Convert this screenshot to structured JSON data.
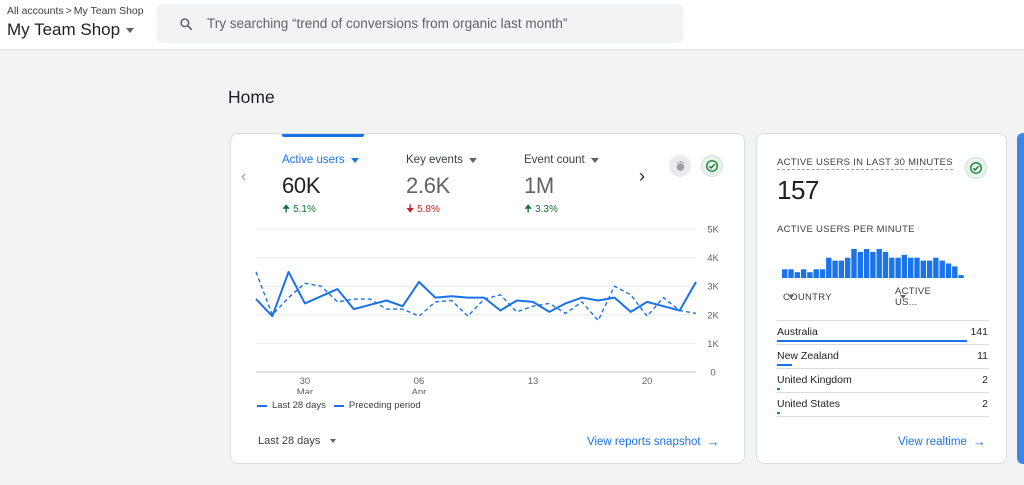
{
  "header": {
    "breadcrumb": [
      "All accounts",
      "My Team Shop"
    ],
    "breadcrumb_separator": ">",
    "property_name": "My Team Shop",
    "search_placeholder": "Try searching “trend of conversions from organic last month”"
  },
  "page": {
    "title": "Home"
  },
  "overview_card": {
    "metrics": [
      {
        "label": "Active users",
        "value": "60K",
        "change": "5.1%",
        "direction": "up",
        "active": true
      },
      {
        "label": "Key events",
        "value": "2.6K",
        "change": "5.8%",
        "direction": "down",
        "active": false
      },
      {
        "label": "Event count",
        "value": "1M",
        "change": "3.3%",
        "direction": "up",
        "active": false
      }
    ],
    "legend": {
      "current": "Last 28 days",
      "previous": "Preceding period"
    },
    "date_range": "Last 28 days",
    "link": "View reports snapshot",
    "icons": [
      "chevron-left-icon",
      "chevron-right-icon",
      "insights-icon",
      "check-circle-icon",
      "dropdown-arrow-icon"
    ],
    "colors": {
      "accent": "#1a73e8",
      "up": "#137333",
      "down": "#c5221f"
    }
  },
  "chart_data": {
    "type": "line",
    "x_tick_labels": [
      {
        "day": "30",
        "month": "Mar"
      },
      {
        "day": "06",
        "month": "Apr"
      },
      {
        "day": "13",
        "month": ""
      },
      {
        "day": "20",
        "month": ""
      }
    ],
    "x_tick_index": [
      3,
      10,
      17,
      24
    ],
    "y_ticks": [
      "0",
      "1K",
      "2K",
      "3K",
      "4K",
      "5K"
    ],
    "ylim": [
      0,
      5000
    ],
    "series": [
      {
        "name": "Last 28 days",
        "style": "solid",
        "values": [
          2550,
          1950,
          3500,
          2400,
          2650,
          2900,
          2200,
          2350,
          2500,
          2300,
          3150,
          2600,
          2650,
          2600,
          2600,
          2150,
          2500,
          2450,
          2100,
          2400,
          2600,
          2500,
          2600,
          2100,
          2450,
          2300,
          2150,
          3150
        ]
      },
      {
        "name": "Preceding period",
        "style": "dashed",
        "values": [
          3500,
          2000,
          2600,
          3100,
          3000,
          2450,
          2550,
          2550,
          2200,
          2200,
          1950,
          2450,
          2500,
          1950,
          2550,
          2700,
          2100,
          2300,
          2400,
          2050,
          2450,
          1800,
          3000,
          2700,
          1950,
          2600,
          2150,
          2050
        ]
      }
    ]
  },
  "realtime_card": {
    "title": "ACTIVE USERS IN LAST 30 MINUTES",
    "value": "157",
    "subtitle": "ACTIVE USERS PER MINUTE",
    "per_minute": [
      3,
      3,
      2,
      3,
      2,
      3,
      3,
      7,
      6,
      6,
      7,
      10,
      9,
      10,
      9,
      10,
      9,
      7,
      7,
      8,
      7,
      7,
      6,
      6,
      7,
      6,
      5,
      4,
      1
    ],
    "per_minute_max": 10,
    "columns": {
      "country": "COUNTRY",
      "users": "ACTIVE US..."
    },
    "rows": [
      {
        "country": "Australia",
        "value": "141",
        "share": 0.898
      },
      {
        "country": "New Zealand",
        "value": "11",
        "share": 0.07
      },
      {
        "country": "United Kingdom",
        "value": "2",
        "share": 0.013
      },
      {
        "country": "United States",
        "value": "2",
        "share": 0.013
      }
    ],
    "link": "View realtime"
  }
}
